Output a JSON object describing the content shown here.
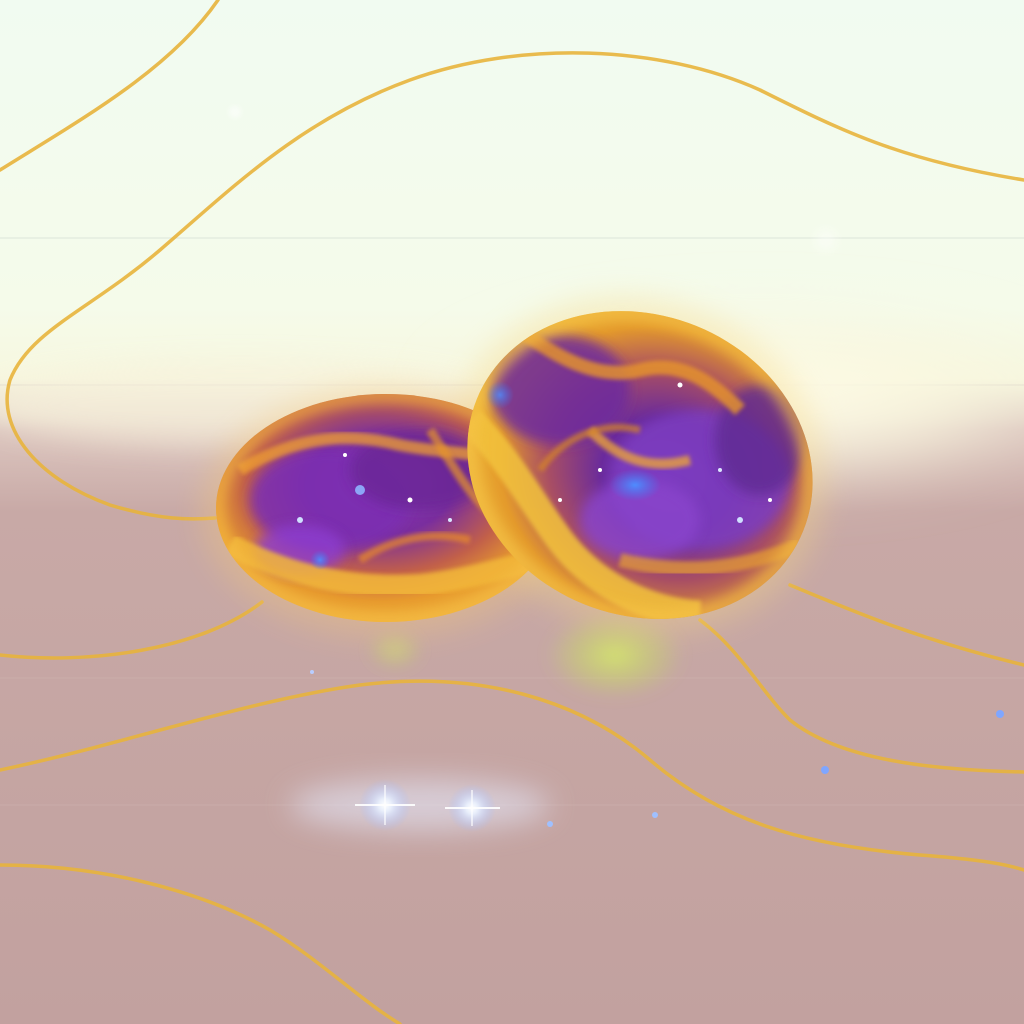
{
  "image": {
    "subject": "two-glowing-nebula-pebbles",
    "palette": {
      "sky_top": "#f2fbf2",
      "sky_mid": "#f6fbe6",
      "horizon_glow": "#fdfbe0",
      "floor": "#c4a4a2",
      "floor_deep": "#bf9d9b",
      "wave_line": "#e8b43c",
      "orb_purple": "#6a2fa0",
      "orb_violet": "#9a3fc4",
      "orb_orange": "#e39a2a",
      "orb_yellow": "#f1c23a",
      "orb_blue": "#3d7cf4",
      "sparkle": "#ffffff",
      "green_glow": "#c8e25a"
    }
  }
}
